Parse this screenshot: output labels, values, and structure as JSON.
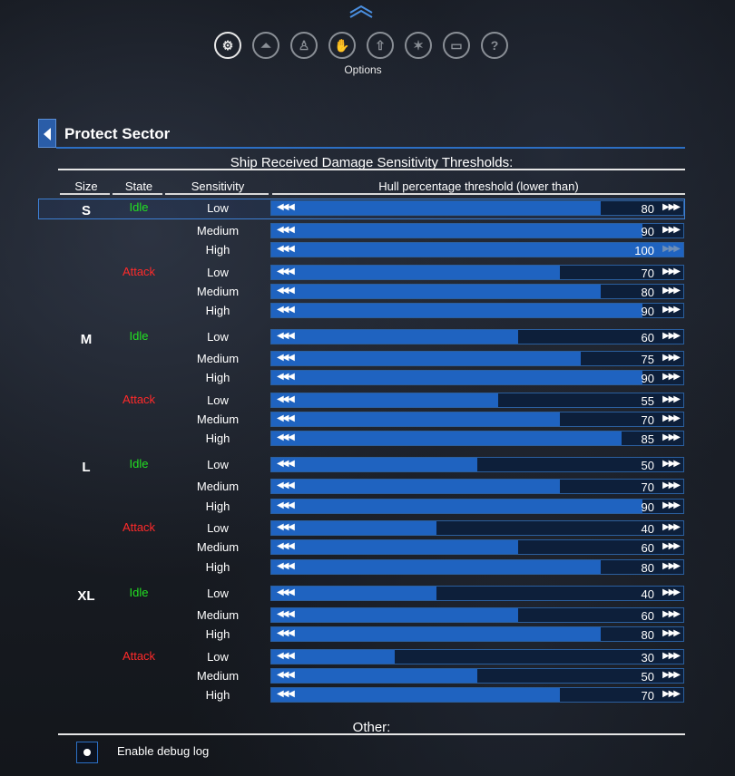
{
  "menu": {
    "items": [
      {
        "name": "settings-gear-icon",
        "glyph": "⚙",
        "active": true
      },
      {
        "name": "flask-icon",
        "glyph": "⏶",
        "active": false
      },
      {
        "name": "person-icon",
        "glyph": "♙",
        "active": false
      },
      {
        "name": "handshake-icon",
        "glyph": "✋",
        "active": false
      },
      {
        "name": "rocket-icon",
        "glyph": "⇧",
        "active": false
      },
      {
        "name": "stars-icon",
        "glyph": "✶",
        "active": false
      },
      {
        "name": "book-icon",
        "glyph": "▭",
        "active": false
      },
      {
        "name": "help-icon",
        "glyph": "?",
        "active": false
      }
    ],
    "active_label": "Options"
  },
  "panel": {
    "title": "Protect Sector"
  },
  "section": {
    "title": "Ship Received Damage Sensitivity Thresholds:",
    "columns": [
      "Size",
      "State",
      "Sensitivity",
      "Hull percentage threshold (lower than)"
    ]
  },
  "thresholds": [
    {
      "size": "S",
      "state": "Idle",
      "sens": "Low",
      "value": 80
    },
    {
      "size": "",
      "state": "",
      "sens": "Medium",
      "value": 90
    },
    {
      "size": "",
      "state": "",
      "sens": "High",
      "value": 100
    },
    {
      "size": "",
      "state": "Attack",
      "sens": "Low",
      "value": 70
    },
    {
      "size": "",
      "state": "",
      "sens": "Medium",
      "value": 80
    },
    {
      "size": "",
      "state": "",
      "sens": "High",
      "value": 90
    },
    {
      "size": "M",
      "state": "Idle",
      "sens": "Low",
      "value": 60
    },
    {
      "size": "",
      "state": "",
      "sens": "Medium",
      "value": 75
    },
    {
      "size": "",
      "state": "",
      "sens": "High",
      "value": 90
    },
    {
      "size": "",
      "state": "Attack",
      "sens": "Low",
      "value": 55
    },
    {
      "size": "",
      "state": "",
      "sens": "Medium",
      "value": 70
    },
    {
      "size": "",
      "state": "",
      "sens": "High",
      "value": 85
    },
    {
      "size": "L",
      "state": "Idle",
      "sens": "Low",
      "value": 50
    },
    {
      "size": "",
      "state": "",
      "sens": "Medium",
      "value": 70
    },
    {
      "size": "",
      "state": "",
      "sens": "High",
      "value": 90
    },
    {
      "size": "",
      "state": "Attack",
      "sens": "Low",
      "value": 40
    },
    {
      "size": "",
      "state": "",
      "sens": "Medium",
      "value": 60
    },
    {
      "size": "",
      "state": "",
      "sens": "High",
      "value": 80
    },
    {
      "size": "XL",
      "state": "Idle",
      "sens": "Low",
      "value": 40
    },
    {
      "size": "",
      "state": "",
      "sens": "Medium",
      "value": 60
    },
    {
      "size": "",
      "state": "",
      "sens": "High",
      "value": 80
    },
    {
      "size": "",
      "state": "Attack",
      "sens": "Low",
      "value": 30
    },
    {
      "size": "",
      "state": "",
      "sens": "Medium",
      "value": 50
    },
    {
      "size": "",
      "state": "",
      "sens": "High",
      "value": 70
    }
  ],
  "other": {
    "title": "Other:",
    "debug_log_label": "Enable debug log",
    "debug_log_enabled": true
  }
}
